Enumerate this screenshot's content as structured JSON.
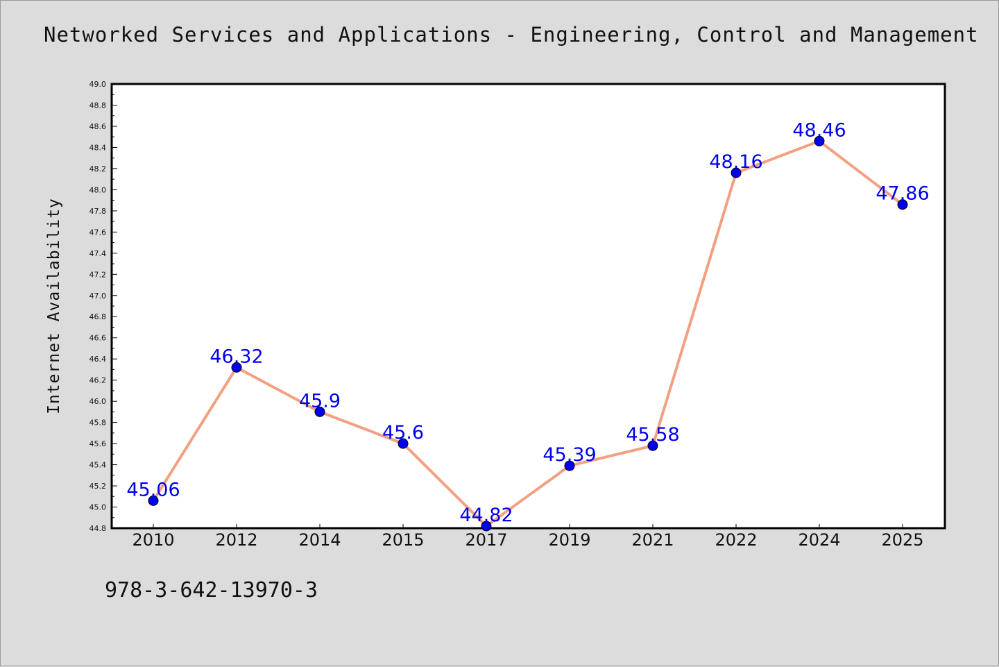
{
  "title": "Networked Services and Applications - Engineering, Control and Management",
  "footer_text": "978-3-642-13970-3",
  "colors": {
    "background": "#dcdcdc",
    "plot_background": "#ffffff",
    "line": "#f4a080",
    "marker": "#0000ee",
    "label": "#0000ee"
  },
  "chart_data": {
    "type": "line",
    "title": "Networked Services and Applications - Engineering, Control and Management",
    "xlabel": "",
    "ylabel": "Internet Availability",
    "categories": [
      "2010",
      "2012",
      "2014",
      "2015",
      "2017",
      "2019",
      "2021",
      "2022",
      "2024",
      "2025"
    ],
    "series": [
      {
        "values": [
          45.06,
          46.32,
          45.9,
          45.6,
          44.82,
          45.39,
          45.58,
          48.16,
          48.46,
          47.86
        ],
        "data_labels": [
          "45.06",
          "46.32",
          "45.9",
          "45.6",
          "44.82",
          "45.39",
          "45.58",
          "48.16",
          "48.46",
          "47.86"
        ]
      }
    ],
    "ylim": [
      44.8,
      49.0
    ],
    "yticks": [
      "44.8",
      "45.0",
      "45.2",
      "45.4",
      "45.6",
      "45.8",
      "46.0",
      "46.2",
      "46.4",
      "46.6",
      "46.8",
      "47.0",
      "47.2",
      "47.4",
      "47.6",
      "47.8",
      "48.0",
      "48.2",
      "48.4",
      "48.6",
      "48.8",
      "49.0"
    ],
    "grid": false,
    "legend": "none",
    "markers": true
  }
}
